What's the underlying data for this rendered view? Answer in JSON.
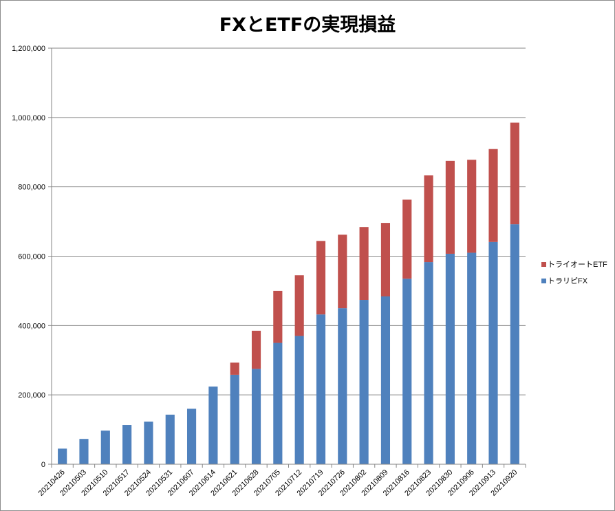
{
  "chart_data": {
    "type": "bar",
    "stacked": true,
    "title": "FXとETFの実現損益",
    "xlabel": "",
    "ylabel": "",
    "ylim": [
      0,
      1200000
    ],
    "yticks": [
      "0",
      "200,000",
      "400,000",
      "600,000",
      "800,000",
      "1,000,000",
      "1,200,000"
    ],
    "ytick_values": [
      0,
      200000,
      400000,
      600000,
      800000,
      1000000,
      1200000
    ],
    "grid": true,
    "legend_position": "right",
    "categories": [
      "20210426",
      "20210503",
      "20210510",
      "20210517",
      "20210524",
      "20210531",
      "20210607",
      "20210614",
      "20210621",
      "20210628",
      "20210705",
      "20210712",
      "20210719",
      "20210726",
      "20210802",
      "20210809",
      "20210816",
      "20210823",
      "20210830",
      "20210906",
      "20210913",
      "20210920"
    ],
    "series": [
      {
        "name": "トラリピFX",
        "color": "#4f81bd",
        "values": [
          45000,
          73000,
          97000,
          113000,
          123000,
          143000,
          160000,
          224000,
          258000,
          275000,
          350000,
          370000,
          432000,
          450000,
          474000,
          484000,
          535000,
          583000,
          607000,
          610000,
          641000,
          692000
        ]
      },
      {
        "name": "トライオートETF",
        "color": "#c0504d",
        "values": [
          0,
          0,
          0,
          0,
          0,
          0,
          0,
          0,
          35000,
          110000,
          150000,
          175000,
          212000,
          212000,
          210000,
          212000,
          228000,
          250000,
          268000,
          268000,
          268000,
          293000
        ]
      }
    ]
  }
}
